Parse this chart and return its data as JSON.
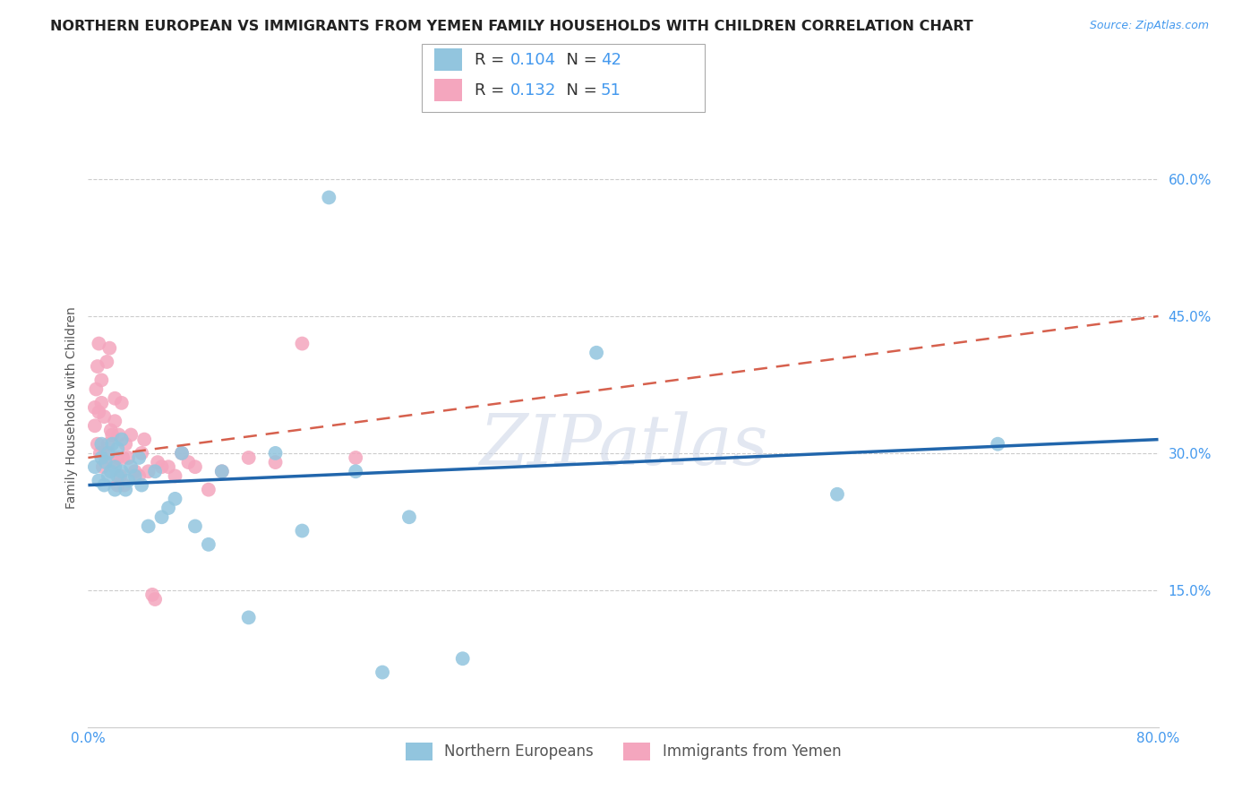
{
  "title": "NORTHERN EUROPEAN VS IMMIGRANTS FROM YEMEN FAMILY HOUSEHOLDS WITH CHILDREN CORRELATION CHART",
  "source": "Source: ZipAtlas.com",
  "ylabel": "Family Households with Children",
  "xlim": [
    0.0,
    0.8
  ],
  "ylim": [
    0.0,
    0.7
  ],
  "blue_R": 0.104,
  "blue_N": 42,
  "pink_R": 0.132,
  "pink_N": 51,
  "blue_color": "#92c5de",
  "pink_color": "#f4a6be",
  "blue_line_color": "#2166ac",
  "pink_line_color": "#d6604d",
  "watermark": "ZIPatlas",
  "legend_blue": "Northern Europeans",
  "legend_pink": "Immigrants from Yemen",
  "blue_x": [
    0.005,
    0.008,
    0.01,
    0.01,
    0.012,
    0.013,
    0.015,
    0.015,
    0.017,
    0.018,
    0.02,
    0.02,
    0.022,
    0.022,
    0.025,
    0.025,
    0.028,
    0.03,
    0.032,
    0.035,
    0.038,
    0.04,
    0.045,
    0.05,
    0.055,
    0.06,
    0.065,
    0.07,
    0.08,
    0.09,
    0.1,
    0.12,
    0.14,
    0.16,
    0.18,
    0.2,
    0.22,
    0.24,
    0.28,
    0.38,
    0.56,
    0.68
  ],
  "blue_y": [
    0.285,
    0.27,
    0.295,
    0.31,
    0.265,
    0.29,
    0.275,
    0.3,
    0.28,
    0.31,
    0.26,
    0.285,
    0.275,
    0.305,
    0.315,
    0.28,
    0.26,
    0.27,
    0.285,
    0.275,
    0.295,
    0.265,
    0.22,
    0.28,
    0.23,
    0.24,
    0.25,
    0.3,
    0.22,
    0.2,
    0.28,
    0.12,
    0.3,
    0.215,
    0.58,
    0.28,
    0.06,
    0.23,
    0.075,
    0.41,
    0.255,
    0.31
  ],
  "pink_x": [
    0.005,
    0.005,
    0.006,
    0.007,
    0.007,
    0.008,
    0.008,
    0.009,
    0.01,
    0.01,
    0.011,
    0.012,
    0.013,
    0.014,
    0.015,
    0.016,
    0.017,
    0.018,
    0.019,
    0.02,
    0.02,
    0.022,
    0.022,
    0.023,
    0.024,
    0.025,
    0.026,
    0.027,
    0.028,
    0.03,
    0.032,
    0.035,
    0.038,
    0.04,
    0.042,
    0.045,
    0.048,
    0.05,
    0.052,
    0.055,
    0.06,
    0.065,
    0.07,
    0.075,
    0.08,
    0.09,
    0.1,
    0.12,
    0.14,
    0.16,
    0.2
  ],
  "pink_y": [
    0.33,
    0.35,
    0.37,
    0.31,
    0.395,
    0.345,
    0.42,
    0.3,
    0.355,
    0.38,
    0.285,
    0.34,
    0.3,
    0.4,
    0.31,
    0.415,
    0.325,
    0.32,
    0.29,
    0.335,
    0.36,
    0.265,
    0.295,
    0.32,
    0.275,
    0.355,
    0.295,
    0.265,
    0.31,
    0.295,
    0.32,
    0.28,
    0.275,
    0.3,
    0.315,
    0.28,
    0.145,
    0.14,
    0.29,
    0.285,
    0.285,
    0.275,
    0.3,
    0.29,
    0.285,
    0.26,
    0.28,
    0.295,
    0.29,
    0.42,
    0.295
  ],
  "grid_color": "#cccccc",
  "bg_color": "#ffffff",
  "title_fontsize": 11.5,
  "source_fontsize": 9,
  "axis_label_fontsize": 10,
  "tick_fontsize": 11,
  "tick_color": "#4499ee"
}
